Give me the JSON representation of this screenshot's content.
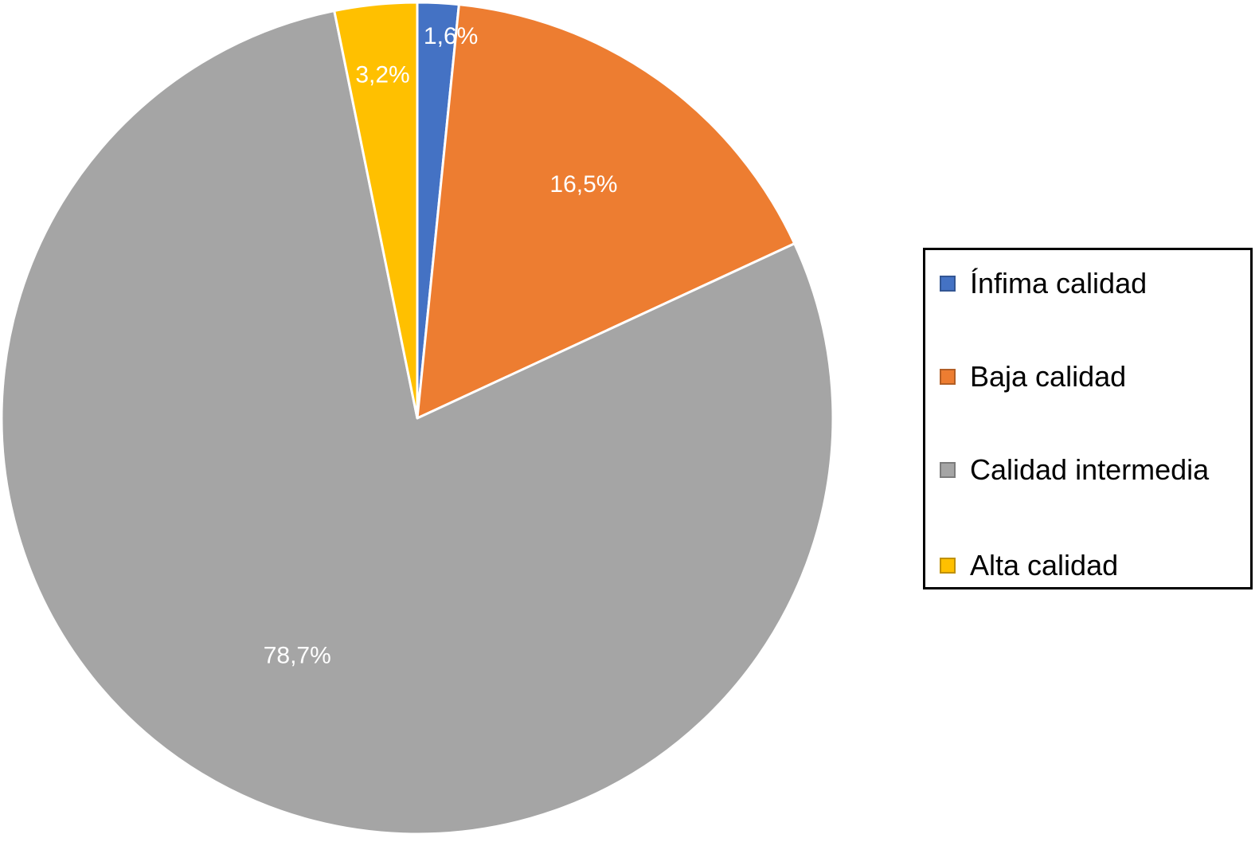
{
  "chart_data": {
    "type": "pie",
    "title": "",
    "slices": [
      {
        "name": "Ínfima calidad",
        "value": 1.6,
        "label": "1,6%",
        "color": "#4472C4"
      },
      {
        "name": "Baja calidad",
        "value": 16.5,
        "label": "16,5%",
        "color": "#ED7D31"
      },
      {
        "name": "Calidad intermedia",
        "value": 78.7,
        "label": "78,7%",
        "color": "#A5A5A5"
      },
      {
        "name": "Alta calidad",
        "value": 3.2,
        "label": "3,2%",
        "color": "#FFC000"
      }
    ],
    "start_angle_deg": 0,
    "direction": "clockwise",
    "legend_position": "right"
  }
}
